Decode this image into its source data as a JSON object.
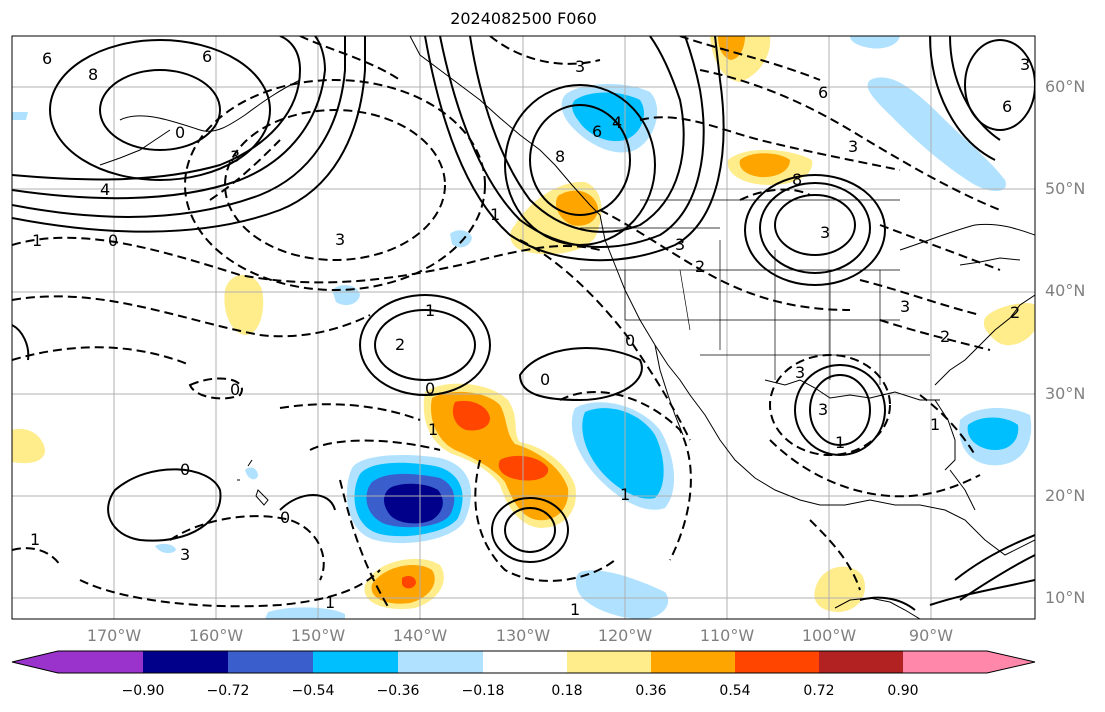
{
  "title": "2024082500 F060",
  "lat_labels": [
    "60°N",
    "50°N",
    "40°N",
    "30°N",
    "20°N",
    "10°N"
  ],
  "lon_labels": [
    "170°W",
    "160°W",
    "150°W",
    "140°W",
    "130°W",
    "120°W",
    "110°W",
    "100°W",
    "90°W"
  ],
  "colorbar": {
    "tick_labels": [
      "−0.90",
      "−0.72",
      "−0.54",
      "−0.36",
      "−0.18",
      "0.18",
      "0.36",
      "0.54",
      "0.72",
      "0.90"
    ],
    "colors": [
      "#9933cc",
      "#00008b",
      "#3a5fcd",
      "#00bfff",
      "#b0e2ff",
      "#ffffff",
      "#ffec8b",
      "#ffa500",
      "#ff4500",
      "#b22222",
      "#ff88aa"
    ]
  },
  "contour_labels": {
    "solid": [
      "6",
      "8",
      "6",
      "0",
      "3",
      "8",
      "3",
      "6",
      "4",
      "3",
      "8",
      "6",
      "3",
      "2",
      "1",
      "2",
      "0",
      "0",
      "1",
      "0",
      "1",
      "0",
      "0"
    ],
    "dashed": [
      "3",
      "3",
      "3",
      "4",
      "1",
      "0",
      "3",
      "3",
      "6",
      "1",
      "3",
      "2",
      "1",
      "1",
      "1",
      "1",
      "1",
      "0",
      "3",
      "2"
    ]
  }
}
